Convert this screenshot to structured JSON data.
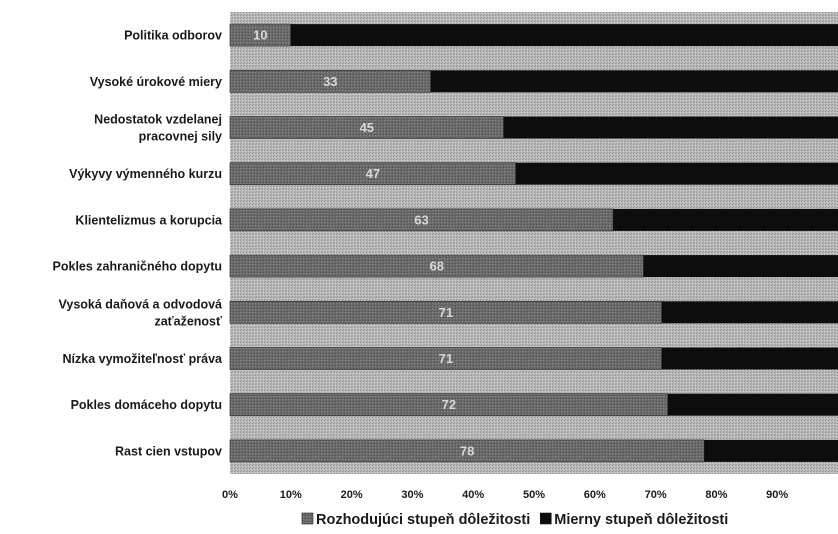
{
  "chart_data": {
    "type": "bar",
    "orientation": "horizontal",
    "stacked": true,
    "categories": [
      "Politika odborov",
      "Vysoké úrokové miery",
      "Nedostatok vzdelanej pracovnej sily",
      "Výkyvy výmenného kurzu",
      "Klientelizmus a korupcia",
      "Pokles zahraničného dopytu",
      "Vysoká daňová a odvodová zaťaženosť",
      "Nízka vymožiteľnosť práva",
      "Pokles domáceho dopytu",
      "Rast cien vstupov"
    ],
    "category_lines": [
      [
        "Politika odborov"
      ],
      [
        "Vysoké úrokové miery"
      ],
      [
        "Nedostatok vzdelanej",
        "pracovnej sily"
      ],
      [
        "Výkyvy výmenného kurzu"
      ],
      [
        "Klientelizmus a korupcia"
      ],
      [
        "Pokles zahraničného dopytu"
      ],
      [
        "Vysoká daňová a odvodová",
        "zaťaženosť"
      ],
      [
        "Nízka vymožiteľnosť práva"
      ],
      [
        "Pokles domáceho dopytu"
      ],
      [
        "Rast cien vstupov"
      ]
    ],
    "series": [
      {
        "name": "Rozhodujúci stupeň dôležitosti",
        "color": "#6e6e6e",
        "values": [
          10,
          33,
          45,
          47,
          63,
          68,
          71,
          71,
          72,
          78
        ],
        "labels": [
          "10",
          "33",
          "45",
          "47",
          "63",
          "68",
          "71",
          "71",
          "72",
          "78"
        ]
      },
      {
        "name": "Mierny stupeň dôležitosti",
        "color": "#0d0d0d",
        "values": [
          90,
          67,
          55,
          53,
          37,
          32,
          29,
          29,
          28,
          22
        ]
      }
    ],
    "xlim": [
      0,
      100
    ],
    "x_ticks": [
      "0%",
      "10%",
      "20%",
      "30%",
      "40%",
      "50%",
      "60%",
      "70%",
      "80%",
      "90%"
    ],
    "xlabel": "",
    "ylabel": "",
    "title": "",
    "grid": false,
    "plot_background": "#b3b3b3",
    "legend_position": "bottom"
  }
}
